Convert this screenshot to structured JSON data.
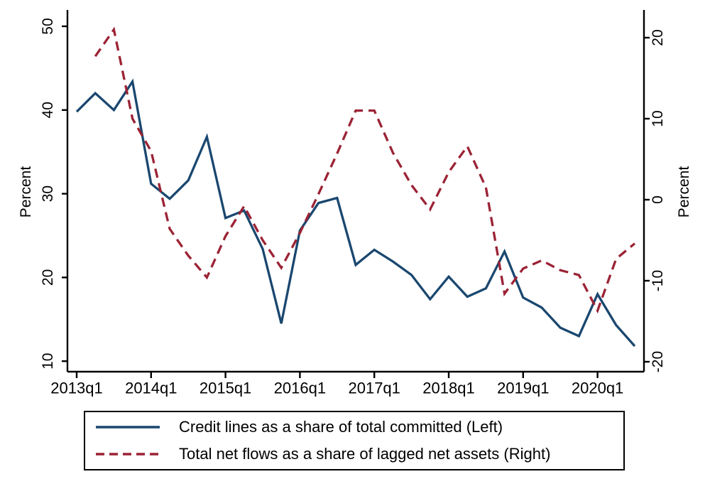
{
  "figure_title": "",
  "chart_data": {
    "type": "line",
    "title": "",
    "categories": [
      "2013q1",
      "2013q2",
      "2013q3",
      "2013q4",
      "2014q1",
      "2014q2",
      "2014q3",
      "2014q4",
      "2015q1",
      "2015q2",
      "2015q3",
      "2015q4",
      "2016q1",
      "2016q2",
      "2016q3",
      "2016q4",
      "2017q1",
      "2017q2",
      "2017q3",
      "2017q4",
      "2018q1",
      "2018q2",
      "2018q3",
      "2018q4",
      "2019q1",
      "2019q2",
      "2019q3",
      "2019q4",
      "2020q1",
      "2020q2",
      "2020q3"
    ],
    "x_ticks": [
      {
        "index": 0,
        "label": "2013q1"
      },
      {
        "index": 4,
        "label": "2014q1"
      },
      {
        "index": 8,
        "label": "2015q1"
      },
      {
        "index": 12,
        "label": "2016q1"
      },
      {
        "index": 16,
        "label": "2017q1"
      },
      {
        "index": 20,
        "label": "2018q1"
      },
      {
        "index": 24,
        "label": "2019q1"
      },
      {
        "index": 28,
        "label": "2020q1"
      }
    ],
    "left_axis": {
      "label": "Percent",
      "ticks": [
        50,
        40,
        30,
        20,
        10
      ],
      "range": [
        10,
        50
      ]
    },
    "right_axis": {
      "label": "Percent",
      "ticks": [
        20,
        10,
        0,
        -10,
        -20
      ],
      "range": [
        -20,
        20
      ]
    },
    "grid": false,
    "legend_position": "bottom",
    "series": [
      {
        "name": "Credit lines as a share of total committed (Left)",
        "axis": "left",
        "style": "solid",
        "color": "#1a476f",
        "values": [
          39.8,
          42.0,
          40.0,
          43.4,
          31.2,
          29.4,
          31.6,
          36.8,
          27.1,
          28.0,
          23.4,
          14.5,
          25.6,
          28.9,
          29.5,
          21.5,
          23.3,
          21.9,
          20.3,
          17.4,
          20.1,
          17.7,
          18.7,
          23.1,
          17.6,
          16.4,
          14.0,
          13.0,
          18.0,
          14.3,
          11.8
        ]
      },
      {
        "name": "Total net flows as a share of lagged net assets (Right)",
        "axis": "right",
        "style": "dashed",
        "color": "#9b2335",
        "values": [
          null,
          17.7,
          21.0,
          10.0,
          6.0,
          -3.6,
          -6.9,
          -9.6,
          -4.5,
          -0.8,
          -5.0,
          -8.4,
          -4.1,
          0.7,
          5.7,
          11.0,
          11.0,
          5.8,
          1.8,
          -1.2,
          3.4,
          6.6,
          1.5,
          -11.6,
          -8.5,
          -7.5,
          -8.7,
          -9.3,
          -13.7,
          -7.3,
          -5.4
        ]
      }
    ],
    "axis_color": "#000000"
  }
}
